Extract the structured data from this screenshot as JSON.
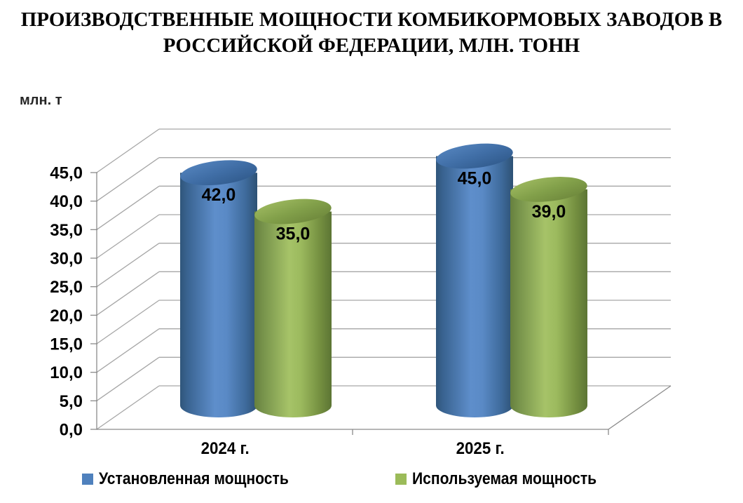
{
  "title": {
    "line1": "ПРОИЗВОДСТВЕННЫЕ МОЩНОСТИ КОМБИКОРМОВЫХ ЗАВОДОВ В",
    "line2": "РОССИЙСКОЙ ФЕДЕРАЦИИ, МЛН. ТОНН"
  },
  "y_axis_unit_label": "млн. т",
  "chart_data": {
    "type": "bar",
    "subtype": "3d-cylinder-clustered",
    "title": "ПРОИЗВОДСТВЕННЫЕ МОЩНОСТИ КОМБИКОРМОВЫХ ЗАВОДОВ В РОССИЙСКОЙ ФЕДЕРАЦИИ, МЛН. ТОНН",
    "ylabel": "млн. т",
    "categories": [
      "2024 г.",
      "2025 г."
    ],
    "series": [
      {
        "name": "Установленная мощность",
        "color": "#4f81bd",
        "values": [
          42.0,
          45.0
        ],
        "data_labels": [
          "42,0",
          "45,0"
        ]
      },
      {
        "name": "Используемая мощность",
        "color": "#9bbb59",
        "values": [
          35.0,
          39.0
        ],
        "data_labels": [
          "35,0",
          "39,0"
        ]
      }
    ],
    "ylim": [
      0,
      45
    ],
    "y_tick_step": 5,
    "y_tick_values": [
      0,
      5,
      10,
      15,
      20,
      25,
      30,
      35,
      40,
      45
    ],
    "y_tick_labels": [
      "0,0",
      "5,0",
      "10,0",
      "15,0",
      "20,0",
      "25,0",
      "30,0",
      "35,0",
      "40,0",
      "45,0"
    ],
    "grid": true,
    "legend_position": "bottom"
  },
  "colors": {
    "background": "#ffffff",
    "gridline": "#a6a6a6",
    "axis": "#8a8a8a",
    "text": "#000000",
    "series_blue": "#4f81bd",
    "series_green": "#9bbb59"
  }
}
